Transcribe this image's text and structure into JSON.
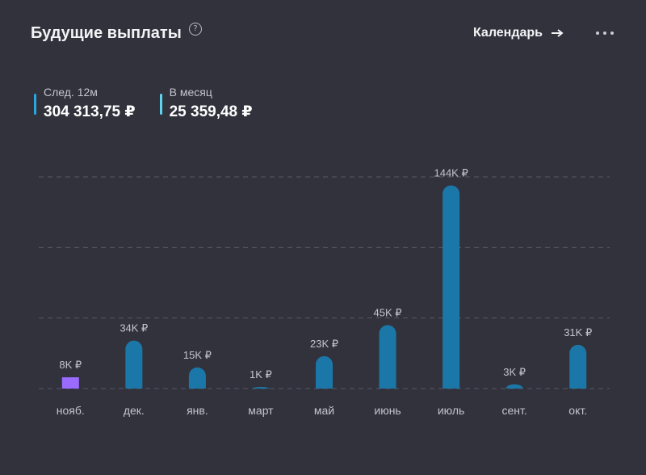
{
  "header": {
    "title": "Будущие выплаты",
    "help_icon": "question-circle-icon",
    "calendar_label": "Календарь",
    "arrow_icon": "arrow-right-icon",
    "more_icon": "more-horizontal-icon"
  },
  "stats": [
    {
      "label": "След. 12м",
      "value": "304 313,75 ₽",
      "color": "#2aa6e0"
    },
    {
      "label": "В месяц",
      "value": "25 359,48 ₽",
      "color": "#5ed3f0"
    }
  ],
  "colors": {
    "bar": "#1b77a7",
    "bar_highlight": "#9b6bff",
    "grid": "#575866"
  },
  "chart_data": {
    "type": "bar",
    "categories": [
      "нояб.",
      "дек.",
      "янв.",
      "март",
      "май",
      "июнь",
      "июль",
      "сент.",
      "окт."
    ],
    "values": [
      8,
      34,
      15,
      1,
      23,
      45,
      144,
      3,
      31
    ],
    "data_labels": [
      "8K ₽",
      "34K ₽",
      "15K ₽",
      "1K ₽",
      "23K ₽",
      "45K ₽",
      "144K ₽",
      "3K ₽",
      "31K ₽"
    ],
    "highlight_index": 0,
    "ylim": [
      0,
      150
    ],
    "grid": true,
    "title": "",
    "xlabel": "",
    "ylabel": ""
  }
}
